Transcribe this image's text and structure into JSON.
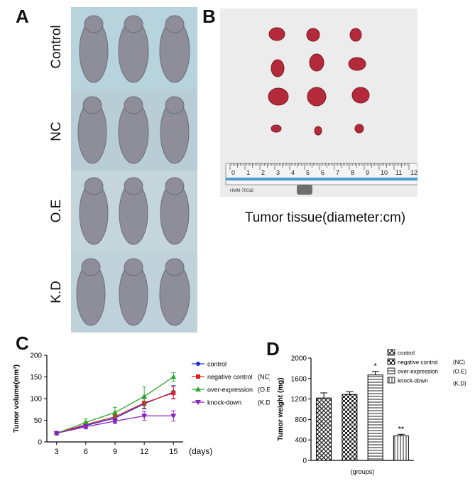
{
  "panels": {
    "a_letter": "A",
    "b_letter": "B",
    "c_letter": "C",
    "d_letter": "D"
  },
  "photo_a": {
    "row_labels": [
      "Control",
      "NC",
      "O.E",
      "K.D"
    ]
  },
  "photo_b": {
    "caption": "Tumor tissue(diameter:cm)",
    "ruler_numbers": [
      "0",
      "1",
      "2",
      "3",
      "4",
      "5",
      "6",
      "7",
      "8",
      "9",
      "10",
      "11",
      "12"
    ],
    "ruler_label": "HMM-70018"
  },
  "chart_data": [
    {
      "type": "line",
      "ylabel": "Tumor volume(mm³)",
      "xlabel": "(days)",
      "x": [
        3,
        6,
        9,
        12,
        15
      ],
      "xlim": [
        2,
        16
      ],
      "ylim": [
        0,
        200
      ],
      "yticks": [
        0,
        50,
        100,
        150,
        200
      ],
      "grid": false,
      "legend_position": "right",
      "series": [
        {
          "name": "control",
          "suffix": "",
          "color": "#1f2fd6",
          "marker": "circle",
          "values": [
            20,
            38,
            55,
            88,
            115
          ],
          "errors": [
            2,
            6,
            10,
            12,
            15
          ]
        },
        {
          "name": "negative control",
          "suffix": "(NC)",
          "color": "#e02020",
          "marker": "square",
          "values": [
            20,
            40,
            58,
            90,
            113
          ],
          "errors": [
            2,
            6,
            8,
            12,
            14
          ]
        },
        {
          "name": "over-expression",
          "suffix": "(O.E)",
          "color": "#2aa52a",
          "marker": "triangle-up",
          "values": [
            20,
            45,
            68,
            105,
            150
          ],
          "errors": [
            2,
            8,
            12,
            22,
            10
          ]
        },
        {
          "name": "knock-down",
          "suffix": "(K.D)",
          "color": "#8a1fc4",
          "marker": "triangle-down",
          "values": [
            20,
            35,
            48,
            60,
            60
          ],
          "errors": [
            2,
            5,
            6,
            10,
            12
          ]
        }
      ]
    },
    {
      "type": "bar",
      "ylabel": "Tumor weight (mg)",
      "xlabel": "(groups)",
      "ylim": [
        0,
        2000
      ],
      "yticks": [
        0,
        400,
        800,
        1200,
        1600,
        2000
      ],
      "grid": false,
      "legend_position": "top-right",
      "categories": [
        "control",
        "negative control",
        "over-expression",
        "knock-down"
      ],
      "suffixes": [
        "",
        "(NC)",
        "(O.E)",
        "(K.D)"
      ],
      "patterns": [
        "crosshatch",
        "checker",
        "horizontal",
        "vertical"
      ],
      "values": [
        1220,
        1290,
        1670,
        480
      ],
      "errors": [
        100,
        50,
        70,
        30
      ],
      "annotations": [
        "",
        "",
        "*",
        "**"
      ]
    }
  ]
}
